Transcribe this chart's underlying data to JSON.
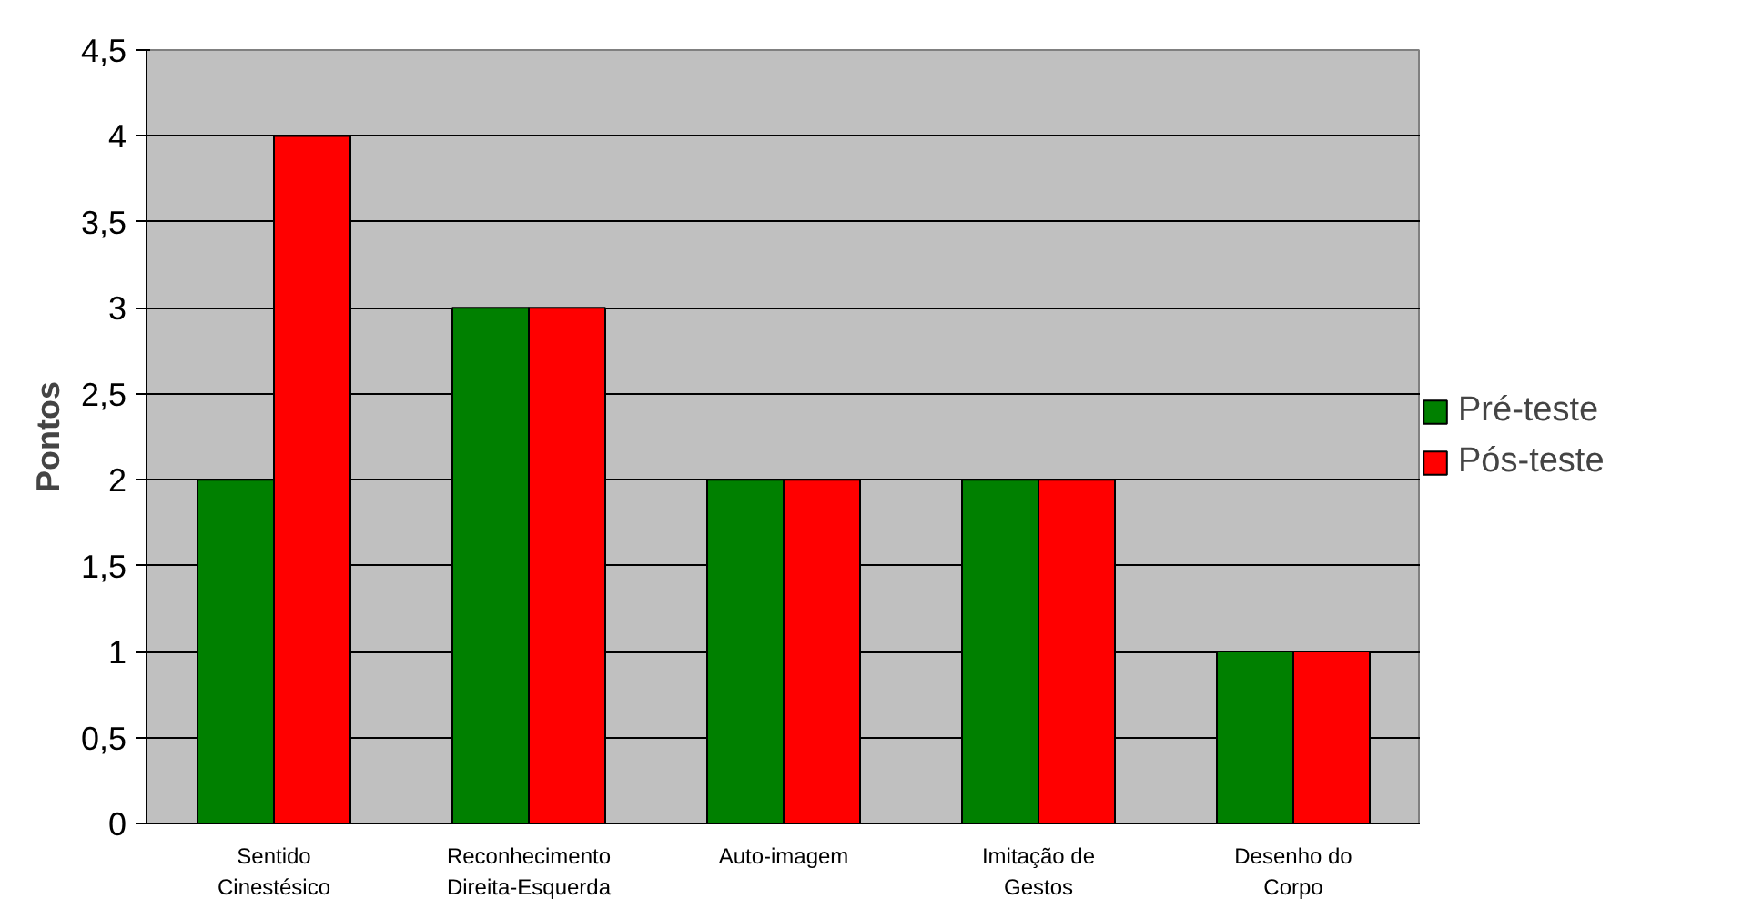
{
  "chart_data": {
    "type": "bar",
    "ylabel": "Pontos",
    "categories": [
      "Sentido\nCinestésico",
      "Reconhecimento\nDireita-Esquerda",
      "Auto-imagem",
      "Imitação de\nGestos",
      "Desenho do\nCorpo"
    ],
    "series": [
      {
        "name": "Pré-teste",
        "color": "#008000",
        "values": [
          2,
          3,
          2,
          2,
          1
        ]
      },
      {
        "name": "Pós-teste",
        "color": "#ff0000",
        "values": [
          4,
          3,
          2,
          2,
          1
        ]
      }
    ],
    "ylim": [
      0,
      4.5
    ],
    "yticks": [
      0,
      {
        "value": 0.5,
        "label": "0,5"
      },
      1,
      {
        "value": 1.5,
        "label": "1,5"
      },
      2,
      {
        "value": 2.5,
        "label": "2,5"
      },
      3,
      {
        "value": 3.5,
        "label": "3,5"
      },
      4,
      {
        "value": 4.5,
        "label": "4,5"
      }
    ],
    "grid": "y",
    "legend": "right"
  }
}
